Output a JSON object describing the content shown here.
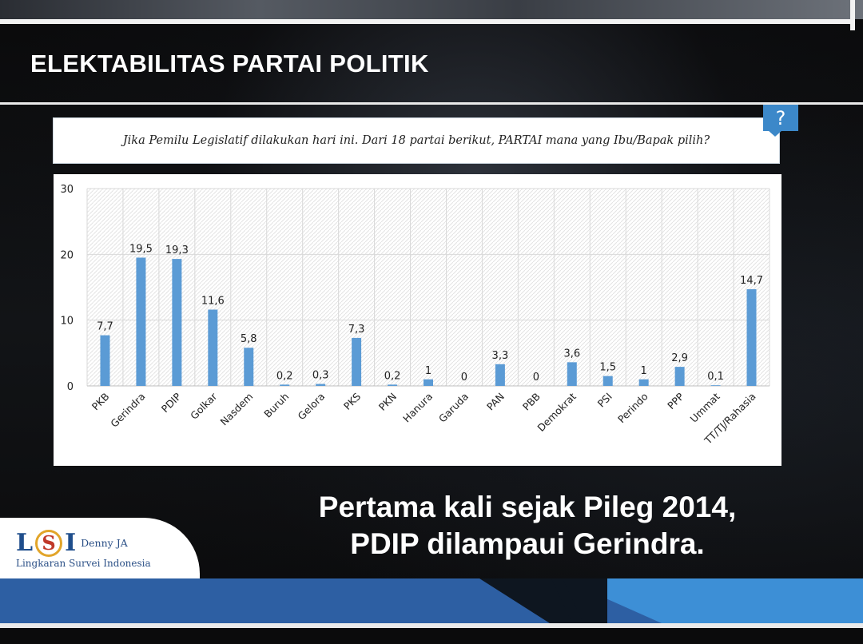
{
  "slide": {
    "title": "ELEKTABILITAS PARTAI POLITIK",
    "question": "Jika Pemilu Legislatif dilakukan hari ini. Dari 18 partai berikut, PARTAI mana yang Ibu/Bapak pilih?",
    "question_icon": "?",
    "headline_line1": "Pertama kali sejak Pileg 2014,",
    "headline_line2": "PDIP dilampaui Gerindra."
  },
  "logo": {
    "letters": [
      "L",
      "S",
      "I"
    ],
    "tagline": "Denny JA",
    "org_name": "Lingkaran Survei Indonesia"
  },
  "colors": {
    "bar": "#5b9bd5",
    "accent": "#3c88c9",
    "band": "#2d5fa3"
  },
  "chart_data": {
    "type": "bar",
    "title": "",
    "xlabel": "",
    "ylabel": "",
    "ylim": [
      0,
      30
    ],
    "yticks": [
      0,
      10,
      20,
      30
    ],
    "grid": true,
    "legend": "none",
    "categories": [
      "PKB",
      "Gerindra",
      "PDIP",
      "Golkar",
      "Nasdem",
      "Buruh",
      "Gelora",
      "PKS",
      "PKN",
      "Hanura",
      "Garuda",
      "PAN",
      "PBB",
      "Demokrat",
      "PSI",
      "Perindo",
      "PPP",
      "Ummat",
      "TT/TJ/Rahasia"
    ],
    "values": [
      7.7,
      19.5,
      19.3,
      11.6,
      5.8,
      0.2,
      0.3,
      7.3,
      0.2,
      1,
      0,
      3.3,
      0,
      3.6,
      1.5,
      1,
      2.9,
      0.1,
      14.7
    ],
    "value_labels": [
      "7,7",
      "19,5",
      "19,3",
      "11,6",
      "5,8",
      "0,2",
      "0,3",
      "7,3",
      "0,2",
      "1",
      "0",
      "3,3",
      "0",
      "3,6",
      "1,5",
      "1",
      "2,9",
      "0,1",
      "14,7"
    ]
  }
}
